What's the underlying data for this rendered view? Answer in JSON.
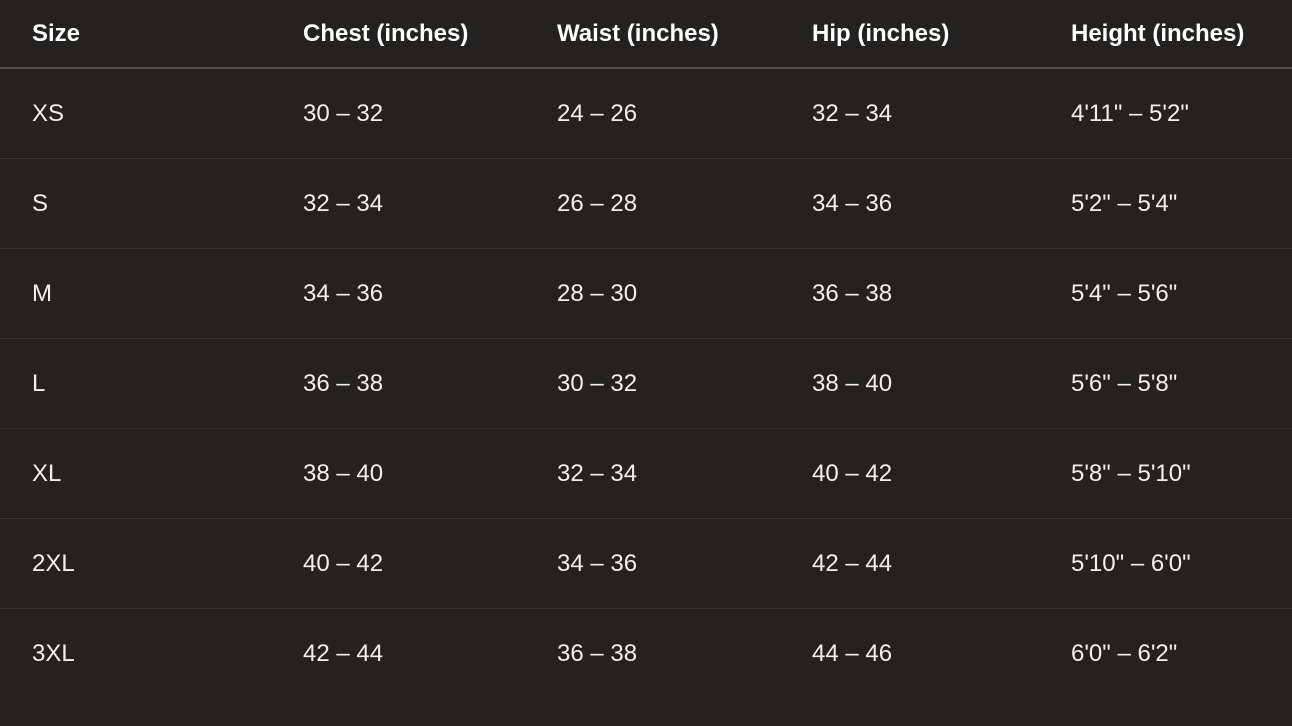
{
  "chart_data": {
    "type": "table",
    "columns": [
      "Size",
      "Chest (inches)",
      "Waist (inches)",
      "Hip (inches)",
      "Height (inches)"
    ],
    "rows": [
      [
        "XS",
        "30 – 32",
        "24 – 26",
        "32 – 34",
        "4'11\" – 5'2\""
      ],
      [
        "S",
        "32 – 34",
        "26 – 28",
        "34 – 36",
        "5'2\" – 5'4\""
      ],
      [
        "M",
        "34 – 36",
        "28 – 30",
        "36 – 38",
        "5'4\" – 5'6\""
      ],
      [
        "L",
        "36 – 38",
        "30 – 32",
        "38 – 40",
        "5'6\" – 5'8\""
      ],
      [
        "XL",
        "38 – 40",
        "32 – 34",
        "40 – 42",
        "5'8\" – 5'10\""
      ],
      [
        "2XL",
        "40 – 42",
        "34 – 36",
        "42 – 44",
        "5'10\" – 6'0\""
      ],
      [
        "3XL",
        "42 – 44",
        "36 – 38",
        "44 – 46",
        "6'0\" – 6'2\""
      ]
    ],
    "layout": {
      "grid": "horizontal row dividers only",
      "header_position": "top"
    }
  },
  "colors": {
    "background": "#232221",
    "header_text": "#ffffff",
    "body_text": "#f2efe8",
    "header_divider": "#514e48",
    "row_divider": "#37342f"
  }
}
